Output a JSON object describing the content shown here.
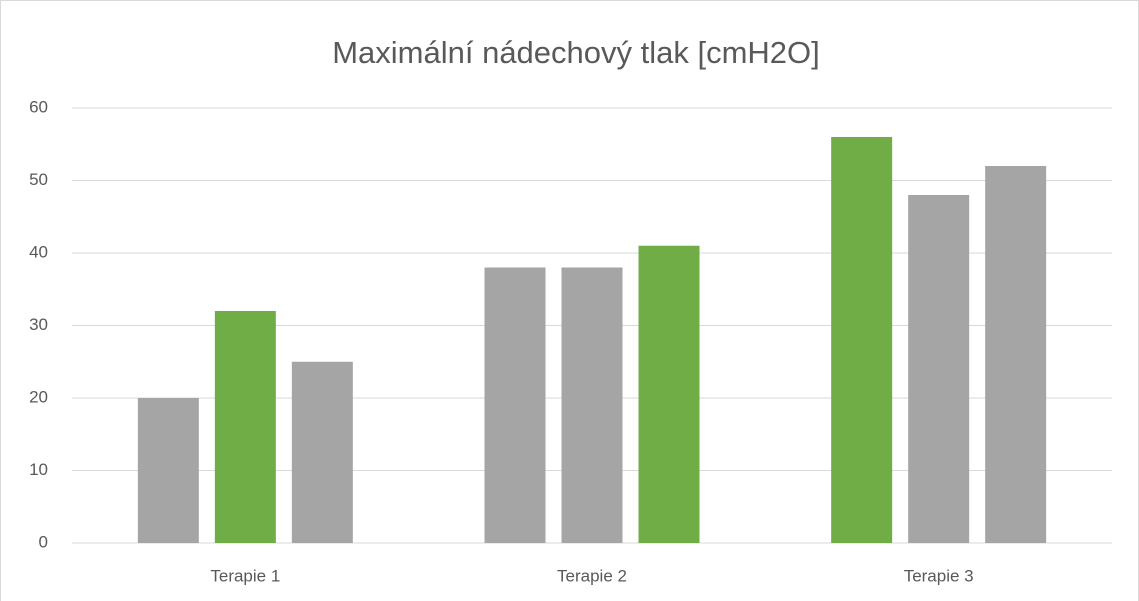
{
  "chart_data": {
    "type": "bar",
    "title": "Maximální nádechový tlak [cmH2O]",
    "categories": [
      "Terapie 1",
      "Terapie 2",
      "Terapie 3"
    ],
    "series": [
      {
        "values": [
          20,
          38,
          56
        ],
        "colors": [
          "#a5a5a5",
          "#a5a5a5",
          "#70ad47"
        ]
      },
      {
        "values": [
          32,
          38,
          48
        ],
        "colors": [
          "#70ad47",
          "#a5a5a5",
          "#a5a5a5"
        ]
      },
      {
        "values": [
          25,
          41,
          52
        ],
        "colors": [
          "#a5a5a5",
          "#70ad47",
          "#a5a5a5"
        ]
      }
    ],
    "ylim": [
      0,
      60
    ],
    "yticks": [
      0,
      10,
      20,
      30,
      40,
      50,
      60
    ],
    "grid": true
  }
}
